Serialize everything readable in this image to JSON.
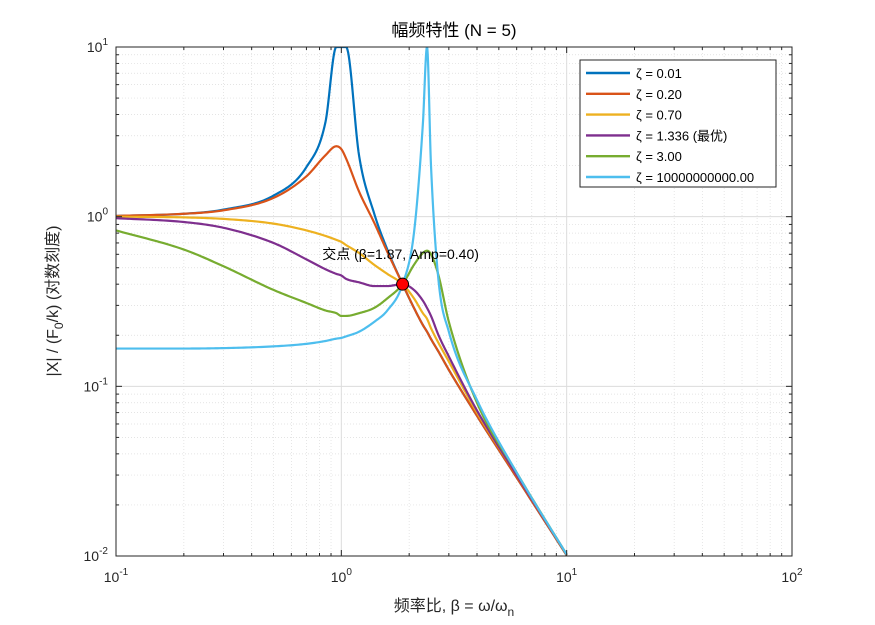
{
  "chart_data": {
    "type": "line",
    "title": "幅频特性 (N = 5)",
    "xlabel": {
      "main": "频率比, β = ω/ω",
      "sub": "n"
    },
    "ylabel": {
      "pre": "|X| / (F",
      "sub": "0",
      "post": "/k)  (对数刻度)"
    },
    "x_scale": "log",
    "y_scale": "log",
    "xlim": [
      0.1,
      100
    ],
    "ylim": [
      0.01,
      10
    ],
    "x_ticks": [
      {
        "value": 0.1,
        "base": "10",
        "exp": "-1"
      },
      {
        "value": 1,
        "base": "10",
        "exp": "0"
      },
      {
        "value": 10,
        "base": "10",
        "exp": "1"
      },
      {
        "value": 100,
        "base": "10",
        "exp": "2"
      }
    ],
    "y_ticks": [
      {
        "value": 0.01,
        "base": "10",
        "exp": "-2"
      },
      {
        "value": 0.1,
        "base": "10",
        "exp": "-1"
      },
      {
        "value": 1,
        "base": "10",
        "exp": "0"
      },
      {
        "value": 10,
        "base": "10",
        "exp": "1"
      }
    ],
    "grid": true,
    "minor_grid": true,
    "legend_position": "top-right",
    "x": [
      0.1,
      0.2,
      0.3,
      0.5,
      0.7,
      0.85,
      0.95,
      1.0,
      1.05,
      1.2,
      1.4,
      1.6,
      1.87,
      2.1,
      2.3,
      2.4,
      2.5,
      2.7,
      3.0,
      4.0,
      6.0,
      10.0
    ],
    "series": [
      {
        "name": "ζ = 0.01",
        "color": "#0072BD",
        "values": [
          1.01,
          1.04,
          1.1,
          1.33,
          1.96,
          3.6,
          10.0,
          10.0,
          10.0,
          2.27,
          1.04,
          0.64,
          0.4,
          0.29,
          0.23,
          0.21,
          0.19,
          0.16,
          0.125,
          0.067,
          0.029,
          0.0101
        ]
      },
      {
        "name": "ζ = 0.20",
        "color": "#D95319",
        "values": [
          1.01,
          1.04,
          1.09,
          1.29,
          1.73,
          2.3,
          2.6,
          2.5,
          2.2,
          1.4,
          0.92,
          0.62,
          0.4,
          0.29,
          0.23,
          0.21,
          0.19,
          0.16,
          0.125,
          0.067,
          0.029,
          0.0101
        ]
      },
      {
        "name": "ζ = 0.70",
        "color": "#EDB120",
        "values": [
          1.0,
          0.99,
          0.97,
          0.91,
          0.83,
          0.77,
          0.73,
          0.71,
          0.68,
          0.61,
          0.52,
          0.46,
          0.4,
          0.33,
          0.27,
          0.25,
          0.22,
          0.18,
          0.14,
          0.07,
          0.03,
          0.0102
        ]
      },
      {
        "name": "ζ = 1.336 (最优)",
        "color": "#7E2F8E",
        "values": [
          0.98,
          0.93,
          0.86,
          0.7,
          0.56,
          0.49,
          0.46,
          0.45,
          0.43,
          0.41,
          0.39,
          0.39,
          0.4,
          0.37,
          0.32,
          0.29,
          0.26,
          0.2,
          0.15,
          0.072,
          0.03,
          0.0102
        ]
      },
      {
        "name": "ζ = 3.00",
        "color": "#77AC30",
        "values": [
          0.83,
          0.64,
          0.51,
          0.37,
          0.31,
          0.28,
          0.27,
          0.26,
          0.26,
          0.27,
          0.29,
          0.33,
          0.4,
          0.52,
          0.61,
          0.63,
          0.6,
          0.45,
          0.24,
          0.08,
          0.031,
          0.0102
        ]
      },
      {
        "name": "ζ = 10000000000.00",
        "color": "#4DBEEE",
        "values": [
          0.167,
          0.167,
          0.168,
          0.172,
          0.178,
          0.185,
          0.191,
          0.193,
          0.197,
          0.21,
          0.24,
          0.28,
          0.4,
          0.8,
          3.5,
          10.0,
          2.0,
          0.42,
          0.21,
          0.083,
          0.031,
          0.0102
        ]
      }
    ],
    "annotation": {
      "text": "交点 (β=1.87, Amp=0.40)",
      "x": 1.87,
      "y": 0.4,
      "marker_color": "#FF0000"
    }
  }
}
